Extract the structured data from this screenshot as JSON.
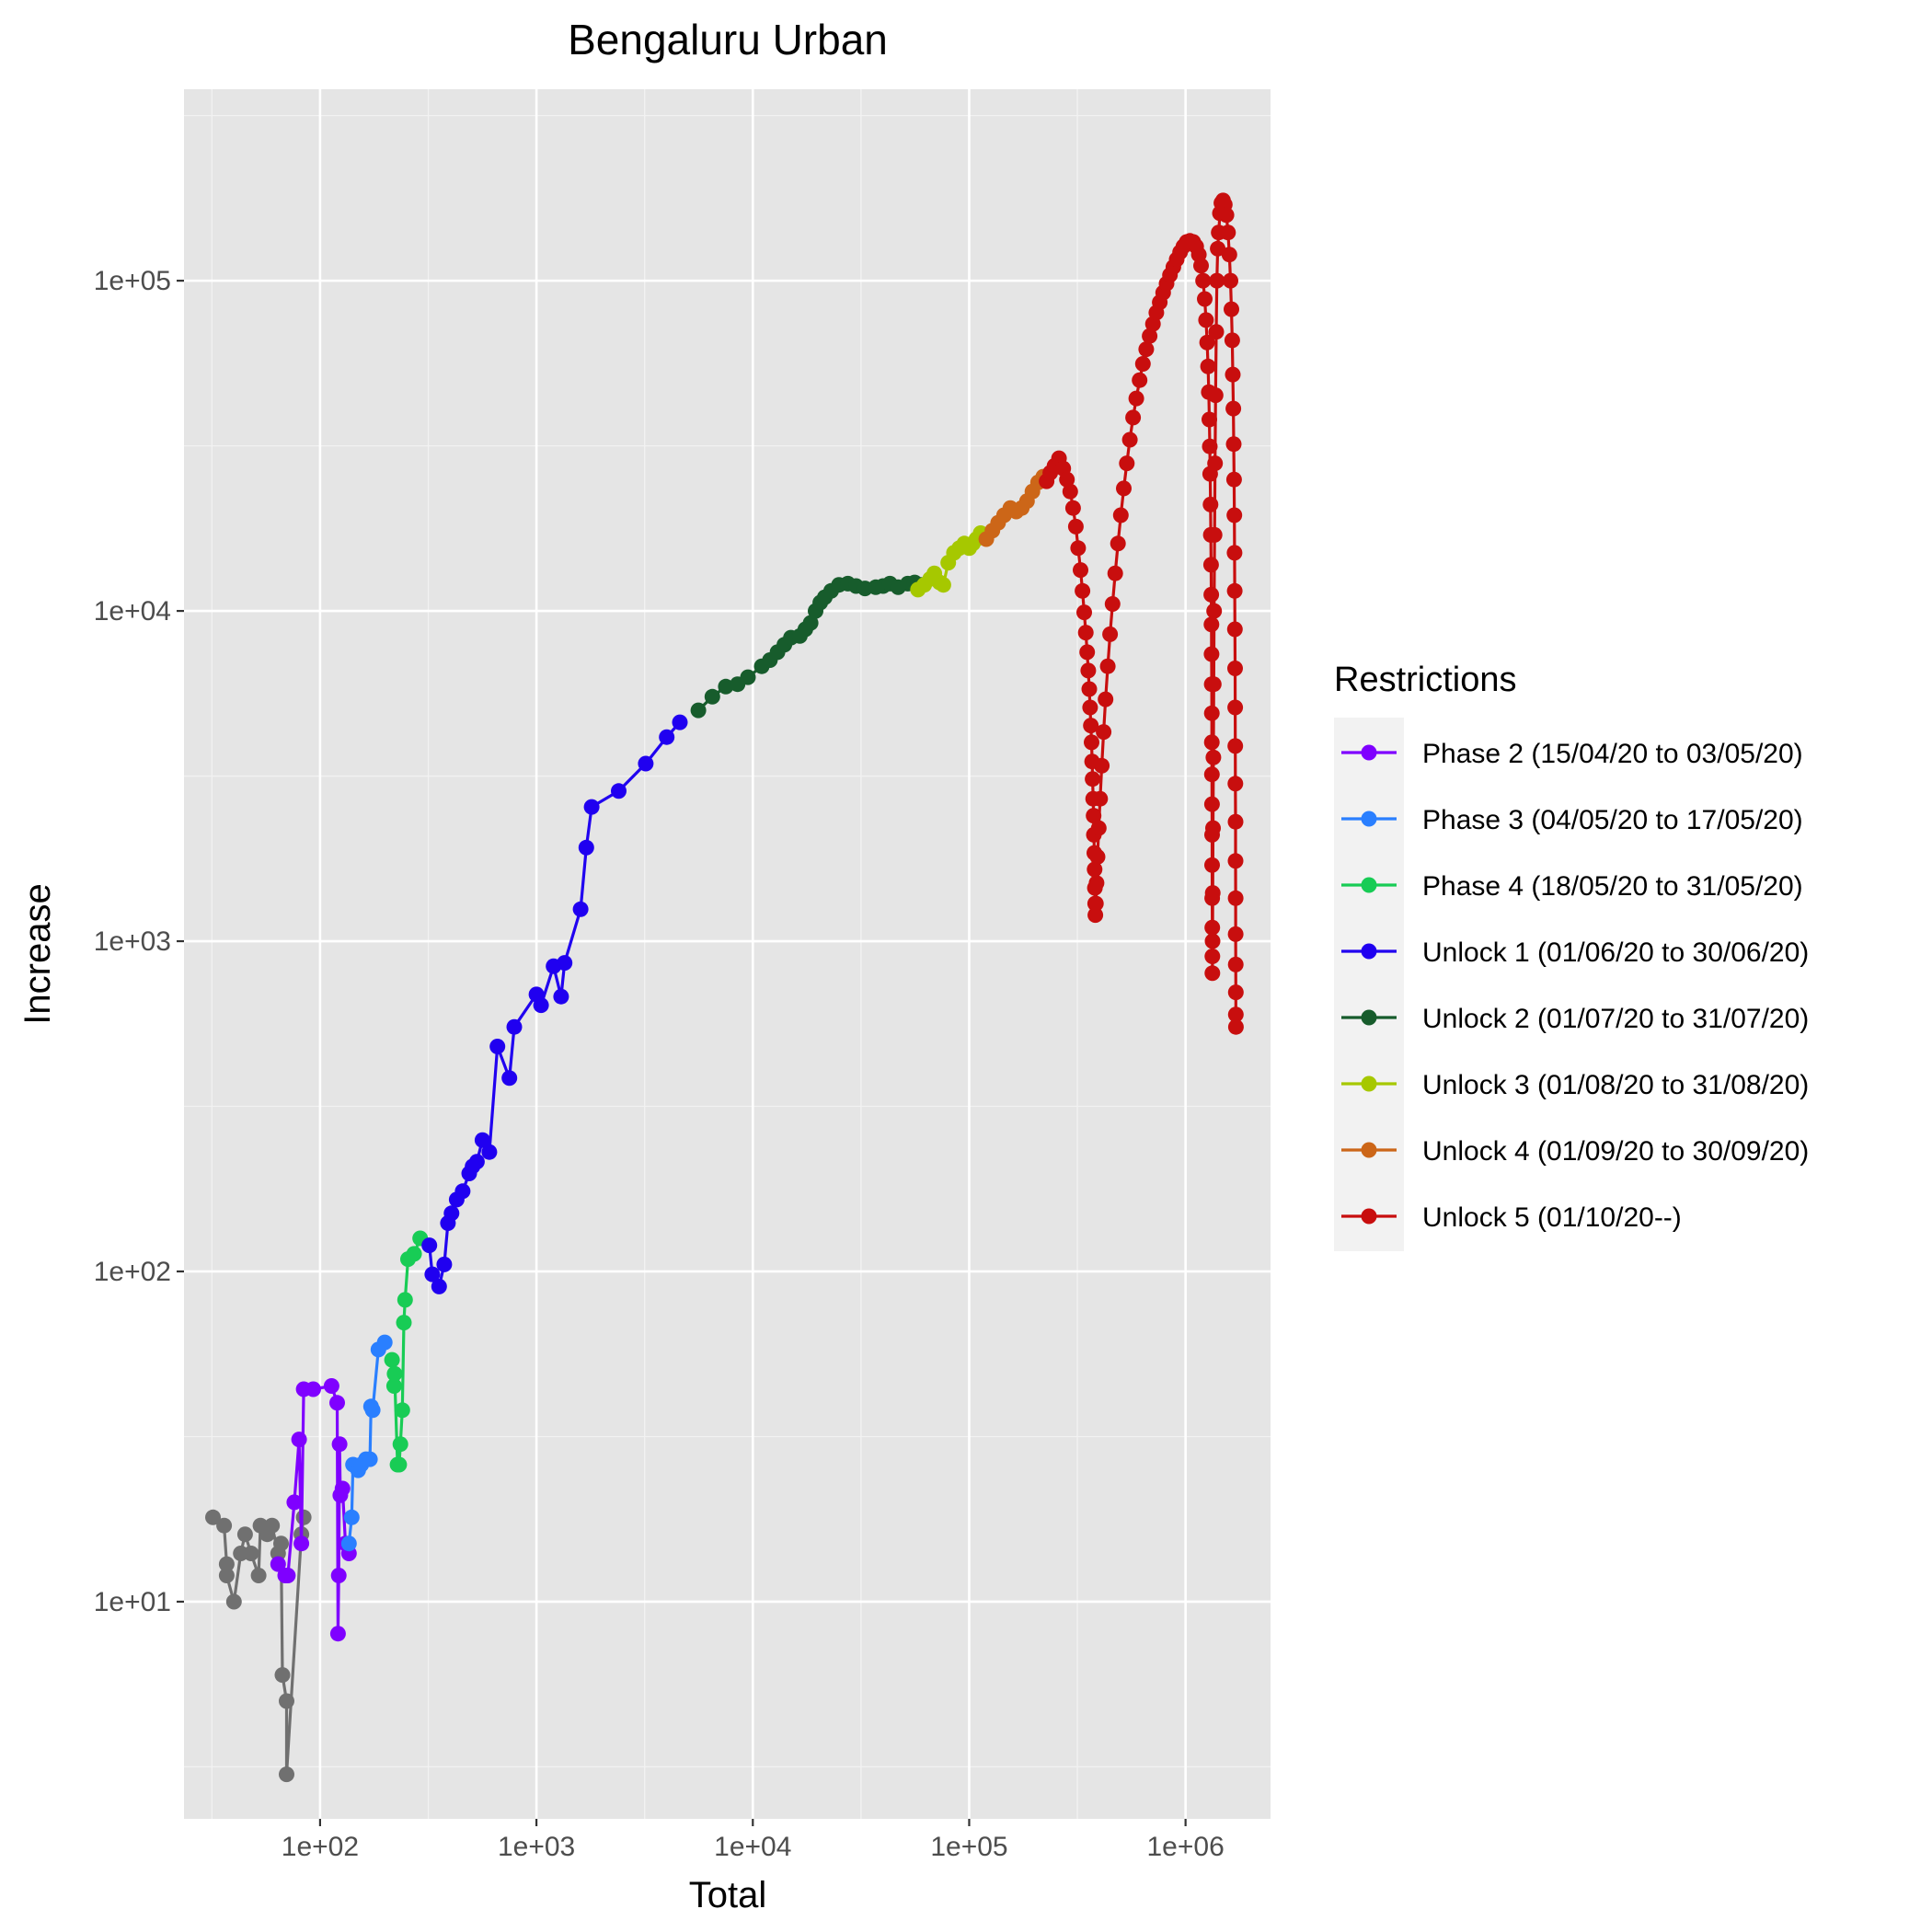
{
  "chart_data": {
    "type": "line",
    "title": "Bengaluru Urban",
    "xlabel": "Total",
    "ylabel": "Increase",
    "x_scale": "log10",
    "y_scale": "log10",
    "xlim": [
      23.5,
      2470000
    ],
    "ylim": [
      2.2,
      380000
    ],
    "x_ticks": [
      {
        "value": 100,
        "label": "1e+02"
      },
      {
        "value": 1000,
        "label": "1e+03"
      },
      {
        "value": 10000,
        "label": "1e+04"
      },
      {
        "value": 100000,
        "label": "1e+05"
      },
      {
        "value": 1000000,
        "label": "1e+06"
      }
    ],
    "y_ticks": [
      {
        "value": 10,
        "label": "1e+01"
      },
      {
        "value": 100,
        "label": "1e+02"
      },
      {
        "value": 1000,
        "label": "1e+03"
      },
      {
        "value": 10000,
        "label": "1e+04"
      },
      {
        "value": 100000,
        "label": "1e+05"
      }
    ],
    "grid": true,
    "background": "#e5e5e5",
    "legend_title": "Restrictions",
    "legend_position": "right",
    "unlabeled_series_color": "#707070",
    "series": [
      {
        "name": "",
        "color": "#707070",
        "points": [
          [
            32,
            18
          ],
          [
            36,
            17
          ],
          [
            37,
            13
          ],
          [
            37,
            12
          ],
          [
            40,
            10
          ],
          [
            43,
            14
          ],
          [
            45,
            16
          ],
          [
            48,
            14
          ],
          [
            52,
            12
          ],
          [
            53,
            17
          ],
          [
            57,
            16
          ],
          [
            60,
            17
          ],
          [
            64,
            14
          ],
          [
            66,
            15
          ],
          [
            67,
            6
          ],
          [
            70,
            5
          ],
          [
            70,
            3
          ],
          [
            82,
            16
          ],
          [
            84,
            18
          ]
        ]
      },
      {
        "name": "Phase 2 (15/04/20 to 03/05/20)",
        "color": "#7f00ff",
        "points": [
          [
            64,
            13
          ],
          [
            69,
            12
          ],
          [
            71,
            12
          ],
          [
            76,
            20
          ],
          [
            80,
            31
          ],
          [
            82,
            15
          ],
          [
            84,
            44
          ],
          [
            93,
            44
          ],
          [
            113,
            45
          ],
          [
            120,
            40
          ],
          [
            121,
            8
          ],
          [
            122,
            12
          ],
          [
            123,
            30
          ],
          [
            124,
            21
          ],
          [
            127,
            22
          ],
          [
            131,
            15
          ],
          [
            136,
            14
          ]
        ]
      },
      {
        "name": "Phase 3 (04/05/20 to 17/05/20)",
        "color": "#2a7fff",
        "points": [
          [
            136,
            15
          ],
          [
            140,
            18
          ],
          [
            142,
            26
          ],
          [
            150,
            25
          ],
          [
            155,
            26
          ],
          [
            163,
            27
          ],
          [
            170,
            27
          ],
          [
            172,
            39
          ],
          [
            175,
            38
          ],
          [
            186,
            58
          ],
          [
            199,
            61
          ]
        ]
      },
      {
        "name": "Phase 4 (18/05/20 to 31/05/20)",
        "color": "#18cc55",
        "points": [
          [
            215,
            54
          ],
          [
            220,
            45
          ],
          [
            221,
            49
          ],
          [
            228,
            26
          ],
          [
            232,
            26
          ],
          [
            235,
            30
          ],
          [
            240,
            38
          ],
          [
            244,
            70
          ],
          [
            247,
            82
          ],
          [
            255,
            109
          ],
          [
            272,
            113
          ],
          [
            290,
            126
          ]
        ]
      },
      {
        "name": "Unlock 1 (01/06/20 to 30/06/20)",
        "color": "#2000f0",
        "points": [
          [
            320,
            120
          ],
          [
            330,
            98
          ],
          [
            355,
            90
          ],
          [
            375,
            105
          ],
          [
            390,
            140
          ],
          [
            405,
            150
          ],
          [
            428,
            165
          ],
          [
            456,
            175
          ],
          [
            489,
            198
          ],
          [
            507,
            208
          ],
          [
            531,
            215
          ],
          [
            563,
            250
          ],
          [
            606,
            230
          ],
          [
            660,
            480
          ],
          [
            750,
            385
          ],
          [
            790,
            550
          ],
          [
            1000,
            690
          ],
          [
            1050,
            640
          ],
          [
            1200,
            840
          ],
          [
            1300,
            680
          ],
          [
            1350,
            860
          ],
          [
            1600,
            1250
          ],
          [
            1700,
            1920
          ],
          [
            1800,
            2550
          ],
          [
            2400,
            2850
          ],
          [
            3200,
            3450
          ],
          [
            4000,
            4150
          ],
          [
            4600,
            4600
          ]
        ]
      },
      {
        "name": "Unlock 2 (01/07/20 to 31/07/20)",
        "color": "#175c2c",
        "points": [
          [
            5600,
            5000
          ],
          [
            6500,
            5500
          ],
          [
            7500,
            5900
          ],
          [
            8500,
            6000
          ],
          [
            9500,
            6300
          ],
          [
            11000,
            6800
          ],
          [
            12000,
            7100
          ],
          [
            13000,
            7500
          ],
          [
            14000,
            7900
          ],
          [
            15000,
            8300
          ],
          [
            16500,
            8400
          ],
          [
            17500,
            8800
          ],
          [
            18500,
            9200
          ],
          [
            19500,
            10000
          ],
          [
            20500,
            10600
          ],
          [
            21500,
            11000
          ],
          [
            23000,
            11500
          ],
          [
            25000,
            12000
          ],
          [
            27500,
            12100
          ],
          [
            30000,
            11900
          ],
          [
            33000,
            11700
          ],
          [
            37000,
            11800
          ],
          [
            40000,
            11900
          ],
          [
            43000,
            12100
          ],
          [
            47000,
            11800
          ],
          [
            52000,
            12100
          ],
          [
            56000,
            12200
          ],
          [
            60000,
            12000
          ]
        ]
      },
      {
        "name": "Unlock 3 (01/08/20 to 31/08/20)",
        "color": "#a6c800",
        "points": [
          [
            58000,
            11600
          ],
          [
            62000,
            12000
          ],
          [
            66000,
            12500
          ],
          [
            69000,
            13000
          ],
          [
            73000,
            12200
          ],
          [
            76000,
            12000
          ],
          [
            80000,
            14000
          ],
          [
            85000,
            15000
          ],
          [
            90000,
            15500
          ],
          [
            95000,
            16000
          ],
          [
            100000,
            15500
          ],
          [
            104000,
            16000
          ],
          [
            108000,
            16500
          ],
          [
            113000,
            17200
          ]
        ]
      },
      {
        "name": "Unlock 4 (01/09/20 to 30/09/20)",
        "color": "#cc6618",
        "points": [
          [
            120000,
            16500
          ],
          [
            128000,
            17500
          ],
          [
            136000,
            18500
          ],
          [
            145000,
            19500
          ],
          [
            155000,
            20500
          ],
          [
            165000,
            20000
          ],
          [
            175000,
            20500
          ],
          [
            185000,
            21500
          ],
          [
            196000,
            23000
          ],
          [
            208000,
            24500
          ],
          [
            220000,
            25500
          ]
        ]
      },
      {
        "name": "Unlock 5 (01/10/20--)",
        "color": "#c80e0e",
        "points": [
          [
            228000,
            24700
          ],
          [
            237000,
            26200
          ],
          [
            248000,
            27500
          ],
          [
            260000,
            29000
          ],
          [
            272000,
            27000
          ],
          [
            283000,
            25000
          ],
          [
            293000,
            23000
          ],
          [
            302000,
            20500
          ],
          [
            311000,
            18000
          ],
          [
            319000,
            15500
          ],
          [
            327000,
            13300
          ],
          [
            334000,
            11500
          ],
          [
            340000,
            9900
          ],
          [
            346000,
            8600
          ],
          [
            351000,
            7500
          ],
          [
            355000,
            6600
          ],
          [
            359000,
            5800
          ],
          [
            362000,
            5100
          ],
          [
            365000,
            4500
          ],
          [
            368000,
            4000
          ],
          [
            370000,
            3500
          ],
          [
            372000,
            3100
          ],
          [
            374000,
            2700
          ],
          [
            376000,
            2400
          ],
          [
            377000,
            2100
          ],
          [
            379000,
            1850
          ],
          [
            380000,
            1650
          ],
          [
            381000,
            1450
          ],
          [
            382000,
            1300
          ],
          [
            383000,
            1200
          ],
          [
            385000,
            1300
          ],
          [
            388000,
            1500
          ],
          [
            392000,
            1800
          ],
          [
            397000,
            2200
          ],
          [
            403000,
            2700
          ],
          [
            410000,
            3400
          ],
          [
            418000,
            4300
          ],
          [
            427000,
            5400
          ],
          [
            437000,
            6800
          ],
          [
            448000,
            8500
          ],
          [
            460000,
            10500
          ],
          [
            473000,
            13000
          ],
          [
            487000,
            16000
          ],
          [
            502000,
            19500
          ],
          [
            518000,
            23500
          ],
          [
            535000,
            28000
          ],
          [
            553000,
            33000
          ],
          [
            572000,
            38500
          ],
          [
            592000,
            44000
          ],
          [
            613000,
            50000
          ],
          [
            635000,
            56000
          ],
          [
            658000,
            62000
          ],
          [
            682000,
            68000
          ],
          [
            707000,
            74000
          ],
          [
            733000,
            80000
          ],
          [
            760000,
            86000
          ],
          [
            788000,
            92000
          ],
          [
            817000,
            98000
          ],
          [
            847000,
            104000
          ],
          [
            878000,
            110000
          ],
          [
            910000,
            116000
          ],
          [
            943000,
            122000
          ],
          [
            977000,
            127000
          ],
          [
            1012000,
            131000
          ],
          [
            1048000,
            132000
          ],
          [
            1085000,
            131000
          ],
          [
            1120000,
            127000
          ],
          [
            1152000,
            120000
          ],
          [
            1180000,
            111000
          ],
          [
            1205000,
            100000
          ],
          [
            1226000,
            88000
          ],
          [
            1244000,
            76000
          ],
          [
            1258000,
            65000
          ],
          [
            1270000,
            55000
          ],
          [
            1280000,
            46000
          ],
          [
            1288000,
            38000
          ],
          [
            1295000,
            31500
          ],
          [
            1300000,
            26000
          ],
          [
            1305000,
            21000
          ],
          [
            1309000,
            17000
          ],
          [
            1312000,
            13800
          ],
          [
            1315000,
            11200
          ],
          [
            1317000,
            9100
          ],
          [
            1319000,
            7400
          ],
          [
            1321000,
            6000
          ],
          [
            1322000,
            4900
          ],
          [
            1323000,
            4000
          ],
          [
            1324000,
            3200
          ],
          [
            1325000,
            2600
          ],
          [
            1326000,
            2100
          ],
          [
            1327000,
            1700
          ],
          [
            1328000,
            1350
          ],
          [
            1329000,
            1100
          ],
          [
            1330000,
            900
          ],
          [
            1331000,
            800
          ],
          [
            1333000,
            1000
          ],
          [
            1336000,
            1400
          ],
          [
            1340000,
            2200
          ],
          [
            1345000,
            3600
          ],
          [
            1350000,
            6000
          ],
          [
            1356000,
            10000
          ],
          [
            1362000,
            17000
          ],
          [
            1369000,
            28000
          ],
          [
            1377000,
            45000
          ],
          [
            1386000,
            70000
          ],
          [
            1396000,
            100000
          ],
          [
            1408000,
            125000
          ],
          [
            1423000,
            140000
          ],
          [
            1442000,
            160000
          ],
          [
            1465000,
            172000
          ],
          [
            1490000,
            175000
          ],
          [
            1518000,
            170000
          ],
          [
            1546000,
            158000
          ],
          [
            1572000,
            140000
          ],
          [
            1595000,
            120000
          ],
          [
            1614000,
            100000
          ],
          [
            1630000,
            82000
          ],
          [
            1643000,
            66000
          ],
          [
            1654000,
            52000
          ],
          [
            1663000,
            41000
          ],
          [
            1670000,
            32000
          ],
          [
            1676000,
            25000
          ],
          [
            1681000,
            19500
          ],
          [
            1685000,
            15000
          ],
          [
            1688000,
            11500
          ],
          [
            1691000,
            8800
          ],
          [
            1694000,
            6700
          ],
          [
            1696000,
            5100
          ],
          [
            1698000,
            3900
          ],
          [
            1700000,
            3000
          ],
          [
            1702000,
            2300
          ],
          [
            1703000,
            1750
          ],
          [
            1704000,
            1350
          ],
          [
            1705000,
            1050
          ],
          [
            1706000,
            850
          ],
          [
            1707000,
            700
          ],
          [
            1708000,
            600
          ],
          [
            1709000,
            550
          ]
        ]
      }
    ]
  }
}
